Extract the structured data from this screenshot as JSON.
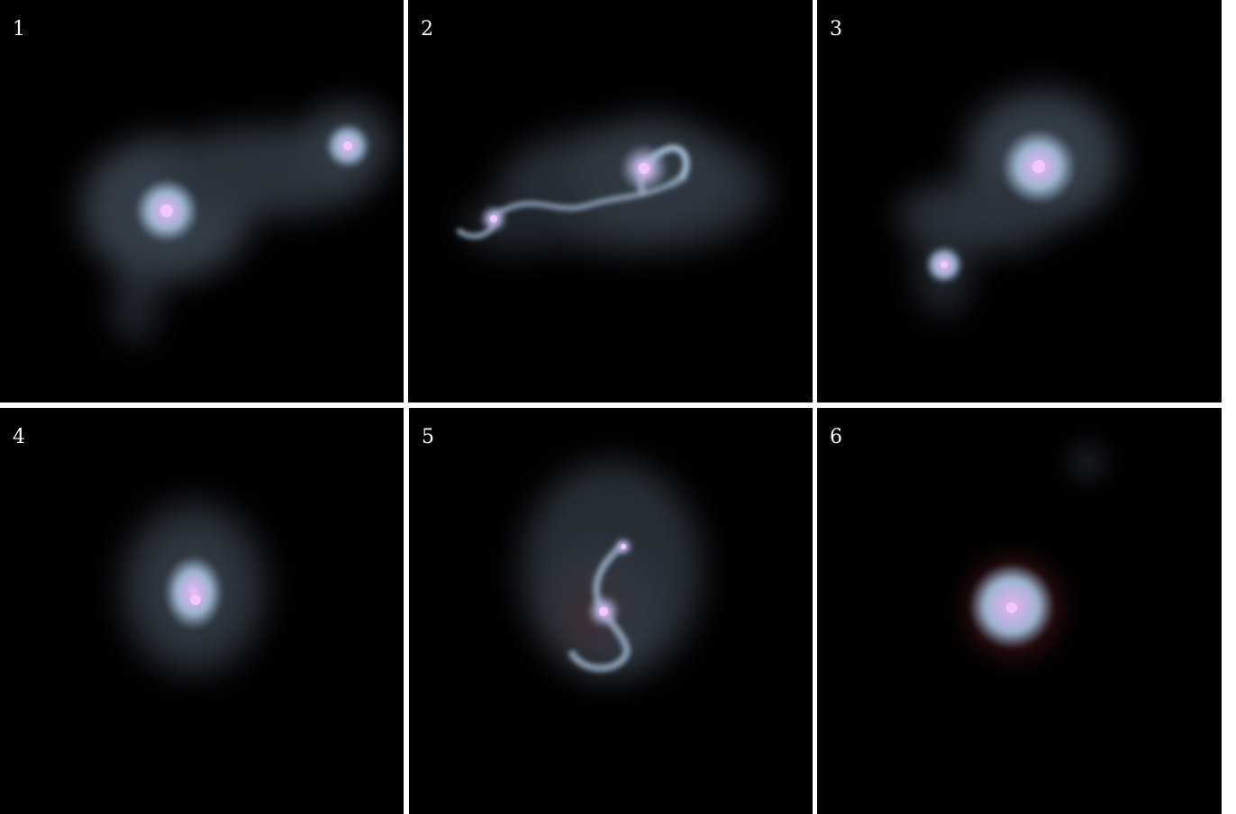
{
  "panels": [
    {
      "label": "1"
    },
    {
      "label": "2"
    },
    {
      "label": "3"
    },
    {
      "label": "4"
    },
    {
      "label": "5"
    },
    {
      "label": "6"
    }
  ],
  "colors": {
    "background": "#000000",
    "separator": "#ffffff",
    "disk": "#a9c3dc",
    "halo": "#5f6f82",
    "core": "#e0a6f0",
    "dust": "#a0303a"
  }
}
